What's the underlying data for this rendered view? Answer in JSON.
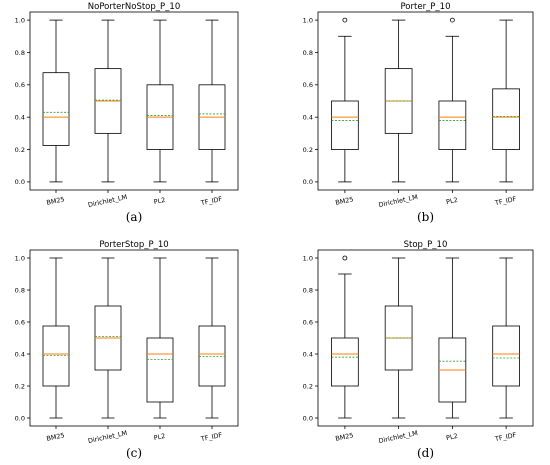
{
  "colors": {
    "box": "#000000",
    "median": "#ff7f0e",
    "mean": "#2ca02c",
    "flier": "#000000"
  },
  "chart_data": [
    {
      "type": "box",
      "panel_label": "(a)",
      "title": "NoPorterNoStop_P_10",
      "categories": [
        "BM25",
        "Dirichlet_LM",
        "PL2",
        "TF_IDF"
      ],
      "yticks": [
        "0.0",
        "0.2",
        "0.4",
        "0.6",
        "0.8",
        "1.0"
      ],
      "ylim": [
        -0.05,
        1.05
      ],
      "boxes": [
        {
          "whisker_low": 0.0,
          "q1": 0.225,
          "median": 0.4,
          "mean": 0.43,
          "q3": 0.675,
          "whisker_high": 1.0,
          "fliers": []
        },
        {
          "whisker_low": 0.0,
          "q1": 0.3,
          "median": 0.5,
          "mean": 0.505,
          "q3": 0.7,
          "whisker_high": 1.0,
          "fliers": []
        },
        {
          "whisker_low": 0.0,
          "q1": 0.2,
          "median": 0.4,
          "mean": 0.41,
          "q3": 0.6,
          "whisker_high": 1.0,
          "fliers": []
        },
        {
          "whisker_low": 0.0,
          "q1": 0.2,
          "median": 0.4,
          "mean": 0.42,
          "q3": 0.6,
          "whisker_high": 1.0,
          "fliers": []
        }
      ]
    },
    {
      "type": "box",
      "panel_label": "(b)",
      "title": "Porter_P_10",
      "categories": [
        "BM25",
        "Dirichlet_LM",
        "PL2",
        "TF_IDF"
      ],
      "yticks": [
        "0.0",
        "0.2",
        "0.4",
        "0.6",
        "0.8",
        "1.0"
      ],
      "ylim": [
        -0.05,
        1.05
      ],
      "boxes": [
        {
          "whisker_low": 0.0,
          "q1": 0.2,
          "median": 0.4,
          "mean": 0.38,
          "q3": 0.5,
          "whisker_high": 0.9,
          "fliers": [
            1.0
          ]
        },
        {
          "whisker_low": 0.0,
          "q1": 0.3,
          "median": 0.5,
          "mean": 0.5,
          "q3": 0.7,
          "whisker_high": 1.0,
          "fliers": []
        },
        {
          "whisker_low": 0.0,
          "q1": 0.2,
          "median": 0.4,
          "mean": 0.38,
          "q3": 0.5,
          "whisker_high": 0.9,
          "fliers": [
            1.0
          ]
        },
        {
          "whisker_low": 0.0,
          "q1": 0.2,
          "median": 0.4,
          "mean": 0.405,
          "q3": 0.575,
          "whisker_high": 1.0,
          "fliers": []
        }
      ]
    },
    {
      "type": "box",
      "panel_label": "(c)",
      "title": "PorterStop_P_10",
      "categories": [
        "BM25",
        "Dirichlet_LM",
        "PL2",
        "TF_IDF"
      ],
      "yticks": [
        "0.0",
        "0.2",
        "0.4",
        "0.6",
        "0.8",
        "1.0"
      ],
      "ylim": [
        -0.05,
        1.05
      ],
      "boxes": [
        {
          "whisker_low": 0.0,
          "q1": 0.2,
          "median": 0.4,
          "mean": 0.39,
          "q3": 0.575,
          "whisker_high": 1.0,
          "fliers": []
        },
        {
          "whisker_low": 0.0,
          "q1": 0.3,
          "median": 0.5,
          "mean": 0.51,
          "q3": 0.7,
          "whisker_high": 1.0,
          "fliers": []
        },
        {
          "whisker_low": 0.0,
          "q1": 0.1,
          "median": 0.4,
          "mean": 0.365,
          "q3": 0.5,
          "whisker_high": 1.0,
          "fliers": []
        },
        {
          "whisker_low": 0.0,
          "q1": 0.2,
          "median": 0.4,
          "mean": 0.385,
          "q3": 0.575,
          "whisker_high": 1.0,
          "fliers": []
        }
      ]
    },
    {
      "type": "box",
      "panel_label": "(d)",
      "title": "Stop_P_10",
      "categories": [
        "BM25",
        "Dirichlet_LM",
        "PL2",
        "TF_IDF"
      ],
      "yticks": [
        "0.0",
        "0.2",
        "0.4",
        "0.6",
        "0.8",
        "1.0"
      ],
      "ylim": [
        -0.05,
        1.05
      ],
      "boxes": [
        {
          "whisker_low": 0.0,
          "q1": 0.2,
          "median": 0.4,
          "mean": 0.38,
          "q3": 0.5,
          "whisker_high": 0.9,
          "fliers": [
            1.0
          ]
        },
        {
          "whisker_low": 0.0,
          "q1": 0.3,
          "median": 0.5,
          "mean": 0.5,
          "q3": 0.7,
          "whisker_high": 1.0,
          "fliers": []
        },
        {
          "whisker_low": 0.0,
          "q1": 0.1,
          "median": 0.3,
          "mean": 0.355,
          "q3": 0.5,
          "whisker_high": 1.0,
          "fliers": []
        },
        {
          "whisker_low": 0.0,
          "q1": 0.2,
          "median": 0.4,
          "mean": 0.375,
          "q3": 0.575,
          "whisker_high": 1.0,
          "fliers": []
        }
      ]
    }
  ]
}
